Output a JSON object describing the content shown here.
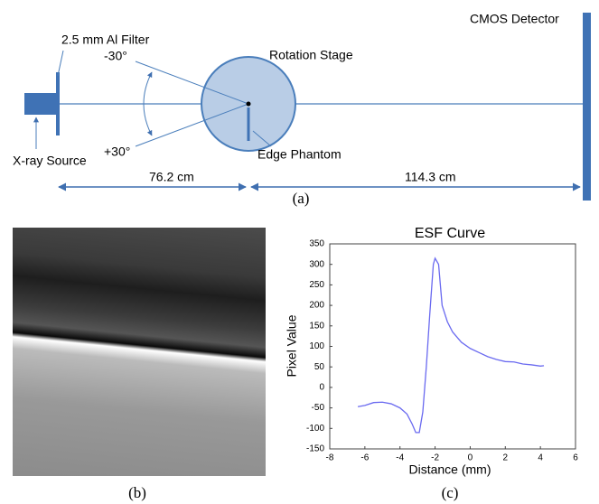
{
  "diagram": {
    "filter_label": "2.5 mm Al Filter",
    "angle_top": "-30°",
    "angle_bottom": "+30°",
    "stage_label": "Rotation Stage",
    "detector_label": "CMOS Detector",
    "source_label": "X-ray Source",
    "phantom_label": "Edge Phantom",
    "distance_1": "76.2 cm",
    "distance_2": "114.3 cm"
  },
  "captions": [
    "(a)",
    "(b)",
    "(c)"
  ],
  "chart_data": {
    "type": "line",
    "title": "ESF Curve",
    "x_label": "Distance (mm)",
    "y_label": "Pixel Value",
    "x": [
      -6.4,
      -6,
      -5.5,
      -5,
      -4.5,
      -4,
      -3.6,
      -3.3,
      -3.1,
      -2.9,
      -2.7,
      -2.5,
      -2.3,
      -2.1,
      -2,
      -1.8,
      -1.6,
      -1.3,
      -1,
      -0.5,
      0,
      0.5,
      1,
      1.5,
      2,
      2.5,
      3,
      3.5,
      4,
      4.2
    ],
    "series": [
      {
        "color": "#6a6af0",
        "values": [
          -47,
          -44,
          -37,
          -36,
          -40,
          -50,
          -65,
          -90,
          -110,
          -110,
          -60,
          50,
          180,
          300,
          315,
          300,
          200,
          160,
          135,
          110,
          95,
          85,
          75,
          68,
          63,
          62,
          57,
          55,
          52,
          53
        ]
      }
    ],
    "xlim": [
      -8,
      6
    ],
    "ylim": [
      -150,
      350
    ],
    "xticks": [
      -8,
      -6,
      -4,
      -2,
      0,
      2,
      4,
      6
    ],
    "yticks": [
      -150,
      -100,
      -50,
      0,
      50,
      100,
      150,
      200,
      250,
      300,
      350
    ]
  }
}
